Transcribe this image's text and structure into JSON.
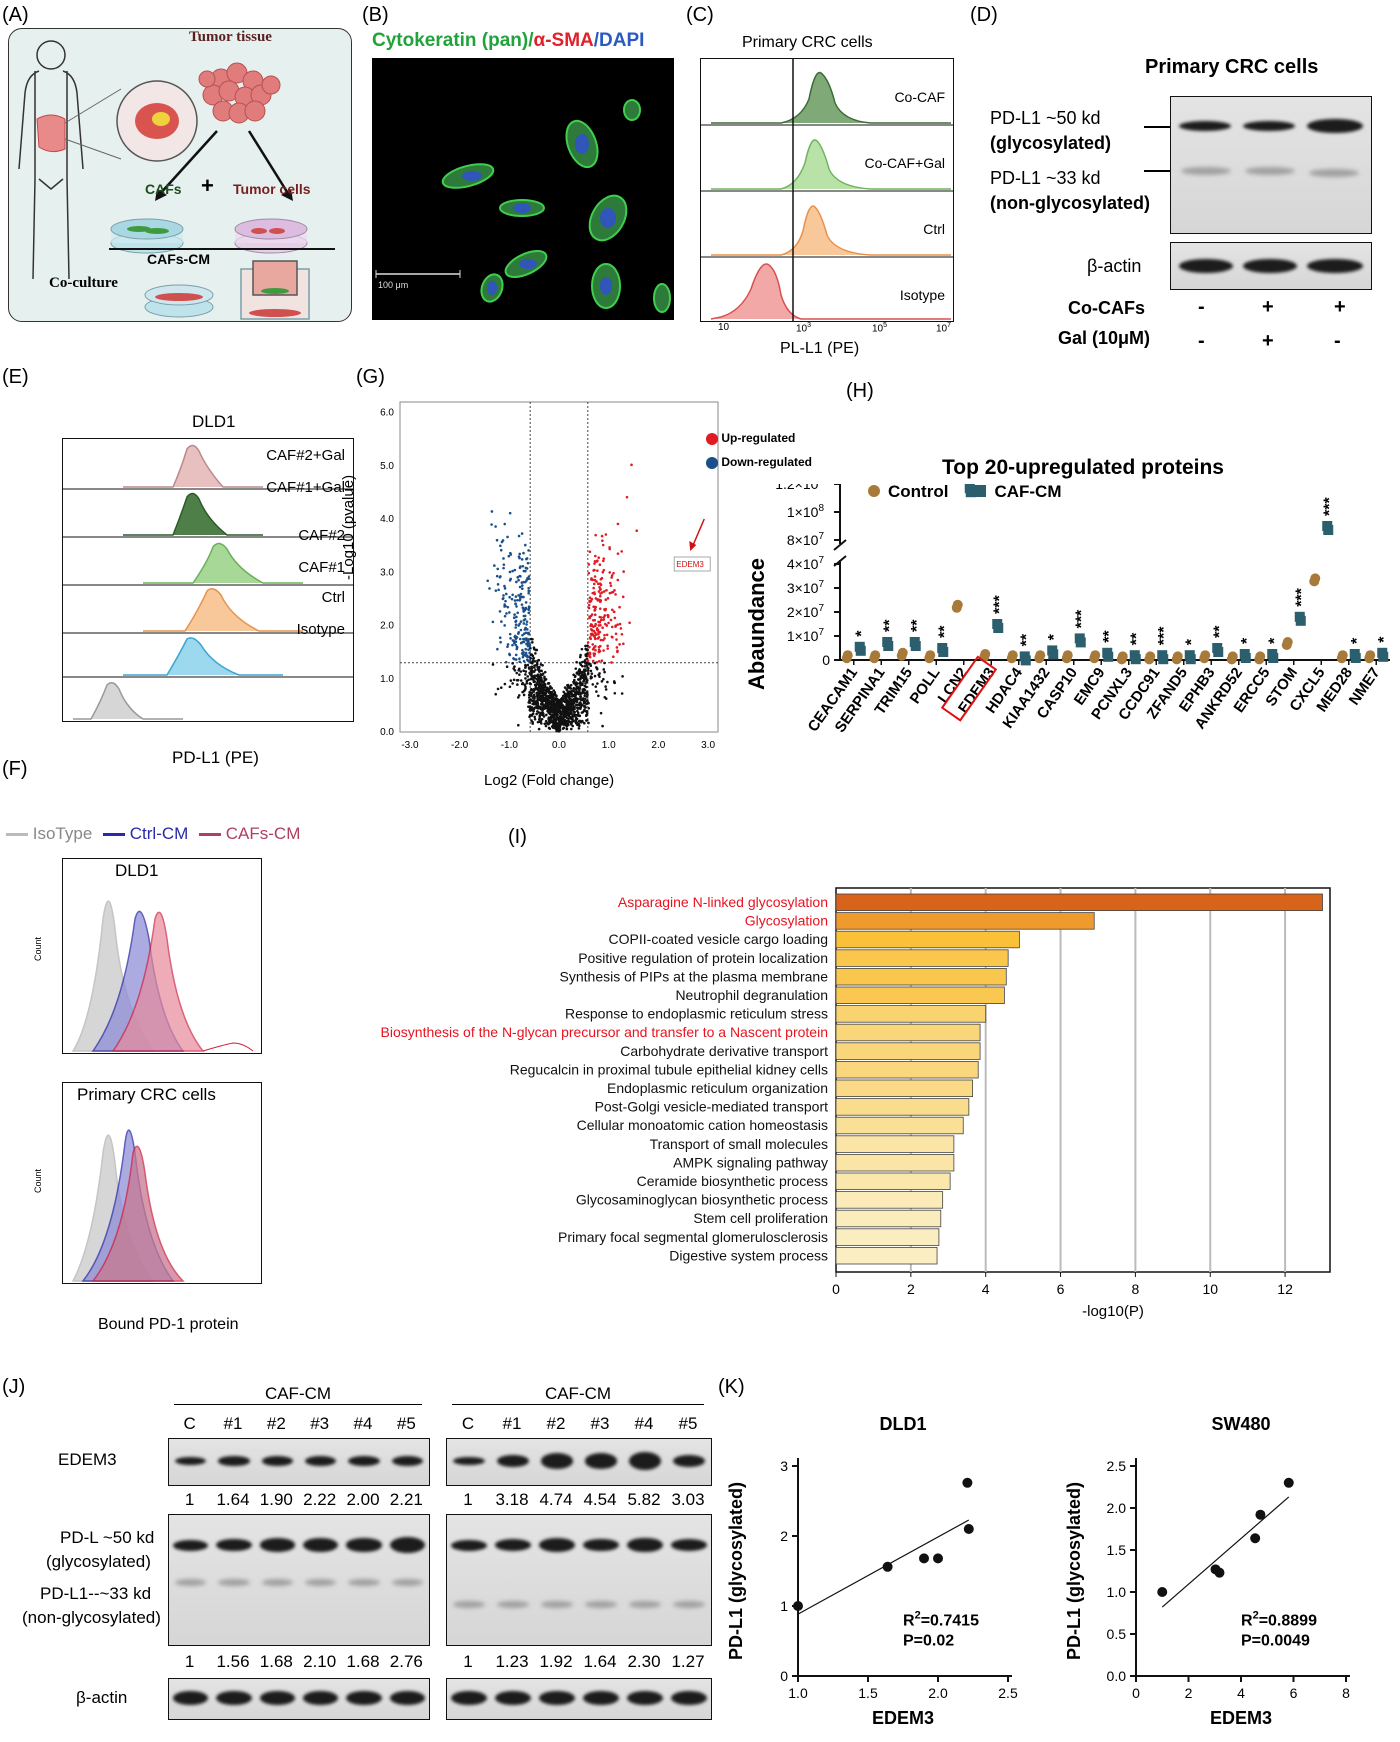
{
  "panels": {
    "A": "(A)",
    "B": "(B)",
    "C": "(C)",
    "D": "(D)",
    "E": "(E)",
    "F": "(F)",
    "G": "(G)",
    "H": "(H)",
    "I": "(I)",
    "J": "(J)",
    "K": "(K)"
  },
  "panelA": {
    "tumor_tissue": "Tumor tissue",
    "cafs": "CAFs",
    "plus": "+",
    "tumor_cells": "Tumor cells",
    "cafs_cm": "CAFs-CM",
    "coculture": "Co-culture"
  },
  "panelB": {
    "title_green": "Cytokeratin (pan)",
    "title_sep1": "/",
    "title_red": "α-SMA",
    "title_sep2": "/",
    "title_blue": "DAPI",
    "scale": "100 μm"
  },
  "panelC": {
    "title": "Primary CRC cells",
    "xlabel": "PL-L1 (PE)",
    "tracks": [
      "Co-CAF",
      "Co-CAF+Gal",
      "Ctrl",
      "Isotype"
    ],
    "ticks": [
      "10",
      "3",
      "10",
      "5",
      "10",
      "7"
    ]
  },
  "panelD": {
    "title": "Primary CRC cells",
    "pdl1_50": "PD-L1 ~50 kd",
    "glyco": "(glycosylated)",
    "pdl1_33": "PD-L1 ~33 kd",
    "nonglyco": "(non-glycosylated)",
    "actin": "β-actin",
    "cocafs": "Co-CAFs",
    "gal": "Gal (10μM)",
    "cocafs_signs": [
      "-",
      "+",
      "+"
    ],
    "gal_signs": [
      "-",
      "+",
      "-"
    ]
  },
  "panelE": {
    "title": "DLD1",
    "xlabel": "PD-L1 (PE)",
    "tracks": [
      "CAF#2+Gal",
      "CAF#1+Gal",
      "CAF#2",
      "CAF#1",
      "Ctrl",
      "Isotype"
    ]
  },
  "panelF": {
    "legend": [
      "IsoType",
      "Ctrl-CM",
      "CAFs-CM"
    ],
    "top_title": "DLD1",
    "bottom_title": "Primary CRC cells",
    "ylabel": "Count",
    "xlabel": "Bound PD-1 protein"
  },
  "panelG": {
    "legend_up": "Up-regulated",
    "legend_down": "Down-regulated",
    "ylabel": "-Log10 (pvalue)",
    "xlabel": "Log2 (Fold change)",
    "annot": "EDEM3"
  },
  "panelH": {
    "title": "Top 20-upregulated proteins",
    "ylabel": "Abaundance",
    "legend": [
      "Control",
      "CAF-CM"
    ]
  },
  "panelI": {
    "xlabel": "-log10(P)"
  },
  "panelJ": {
    "caf_cm": "CAF-CM",
    "lanes": [
      "C",
      "#1",
      "#2",
      "#3",
      "#4",
      "#5"
    ],
    "edem3": "EDEM3",
    "pdl_50": "PD-L ~50 kd",
    "glyco": "(glycosylated)",
    "pdl_33": "PD-L1--~33 kd",
    "nonglyco": "(non-glycosylated)",
    "actin": "β-actin",
    "left_edem3_vals": [
      "1",
      "1.64",
      "1.90",
      "2.22",
      "2.00",
      "2.21"
    ],
    "right_edem3_vals": [
      "1",
      "3.18",
      "4.74",
      "4.54",
      "5.82",
      "3.03"
    ],
    "left_pdl1_vals": [
      "1",
      "1.56",
      "1.68",
      "2.10",
      "1.68",
      "2.76"
    ],
    "right_pdl1_vals": [
      "1",
      "1.23",
      "1.92",
      "1.64",
      "2.30",
      "1.27"
    ]
  },
  "chart_data": [
    {
      "id": "H",
      "type": "scatter",
      "title": "Top 20-upregulated proteins",
      "ylabel": "Abaundance",
      "categories": [
        "CEACAM1",
        "SERPINA1",
        "TRIM15",
        "POLL",
        "LCN2",
        "EDEM3",
        "HDAC4",
        "KIAA1432",
        "CASP10",
        "EMC9",
        "PCNXL3",
        "CCDC91",
        "ZFAND5",
        "EPHB3",
        "ANKRD52",
        "ERCC5",
        "STOM",
        "CXCL5",
        "MED28",
        "NME7"
      ],
      "highlight": "EDEM3",
      "series": [
        {
          "name": "Control",
          "values": [
            2000000.0,
            2000000.0,
            3000000.0,
            2000000.0,
            23000000.0,
            2500000.0,
            2000000.0,
            2000000.0,
            2000000.0,
            2000000.0,
            1500000.0,
            1500000.0,
            1500000.0,
            2000000.0,
            1500000.0,
            1500000.0,
            7500000.0,
            34000000.0,
            2000000.0,
            2000000.0
          ]
        },
        {
          "name": "CAF-CM",
          "values": [
            5500000.0,
            7500000.0,
            7500000.0,
            5000000.0,
            117000000.0,
            15000000.0,
            1500000.0,
            4000000.0,
            9000000.0,
            3000000.0,
            2000000.0,
            2000000.0,
            2000000.0,
            5000000.0,
            2500000.0,
            2500000.0,
            18000000.0,
            90000000.0,
            2500000.0,
            3000000.0
          ]
        }
      ],
      "significance": [
        "*",
        "**",
        "**",
        "**",
        "***",
        "***",
        "**",
        "*",
        "***",
        "**",
        "**",
        "***",
        "*",
        "**",
        "*",
        "*",
        "***",
        "***",
        "*",
        "*"
      ],
      "yticks_lower": [
        "0",
        "1×10",
        "2×10",
        "3×10",
        "4×10"
      ],
      "yticks_upper": [
        "8×10",
        "1×10",
        "1.2×10",
        "1.4×10"
      ],
      "ytick_exponents_lower": [
        "",
        "7",
        "7",
        "7",
        "7"
      ],
      "ytick_exponents_upper": [
        "7",
        "8",
        "8",
        "8"
      ],
      "axis_break": true
    },
    {
      "id": "I",
      "type": "bar",
      "xlabel": "-log10(P)",
      "xlim": [
        0,
        13.2
      ],
      "xticks": [
        "0",
        "2",
        "4",
        "6",
        "8",
        "10",
        "12"
      ],
      "categories": [
        "Asparagine N-linked glycosylation",
        "Glycosylation",
        "COPII-coated vesicle cargo loading",
        "Positive regulation of protein localization",
        "Synthesis of PIPs at the plasma membrane",
        "Neutrophil degranulation",
        "Response to endoplasmic reticulum stress",
        "Biosynthesis of the N-glycan precursor and transfer to a Nascent protein",
        "Carbohydrate derivative transport",
        "Regucalcin in proximal tubule epithelial kidney cells",
        "Endoplasmic reticulum organization",
        "Post-Golgi vesicle-mediated transport",
        "Cellular monoatomic cation homeostasis",
        "Transport of small molecules",
        "AMPK signaling pathway",
        "Ceramide biosynthetic process",
        "Glycosaminoglycan biosynthetic process",
        "Stem cell proliferation",
        "Primary focal segmental glomerulosclerosis",
        "Digestive system process"
      ],
      "values": [
        13.0,
        6.9,
        4.9,
        4.6,
        4.55,
        4.5,
        4.0,
        3.85,
        3.85,
        3.8,
        3.65,
        3.55,
        3.4,
        3.15,
        3.15,
        3.05,
        2.85,
        2.8,
        2.75,
        2.7
      ],
      "highlighted": [
        "Asparagine N-linked glycosylation",
        "Glycosylation",
        "Biosynthesis of the N-glycan precursor and transfer to a Nascent protein"
      ],
      "colors": {
        "highlight_text": "#e8131f"
      }
    },
    {
      "id": "G",
      "type": "scatter",
      "xlabel": "Log2 (Fold change)",
      "ylabel": "-Log10 (pvalue)",
      "xlim": [
        -3.2,
        3.2
      ],
      "ylim": [
        0,
        6.2
      ],
      "xticks": [
        "-3.0",
        "-2.0",
        "-1.0",
        "0.0",
        "1.0",
        "2.0",
        "3.0"
      ],
      "yticks": [
        "0.0",
        "1.0",
        "2.0",
        "3.0",
        "4.0",
        "5.0",
        "6.0"
      ],
      "thresholds": {
        "x": [
          -0.58,
          0.58
        ],
        "y": 1.3
      },
      "annotation": {
        "label": "EDEM3",
        "x": 2.4,
        "y": 3.1
      },
      "colors": {
        "up": "#e01b24",
        "down": "#1a4f8a"
      }
    },
    {
      "id": "K1",
      "type": "scatter",
      "title": "DLD1",
      "xlabel": "EDEM3",
      "ylabel": "PD-L1 (glycosylated)",
      "x": [
        1,
        1.64,
        1.9,
        2.0,
        2.22,
        2.21
      ],
      "y": [
        1,
        1.56,
        1.68,
        1.68,
        2.1,
        2.76
      ],
      "xlim": [
        1.0,
        2.5
      ],
      "ylim": [
        0,
        3
      ],
      "xticks": [
        "1.0",
        "1.5",
        "2.0",
        "2.5"
      ],
      "yticks": [
        "0",
        "1",
        "2",
        "3"
      ],
      "stats": [
        "R",
        "2",
        "=0.7415",
        "P=0.02"
      ]
    },
    {
      "id": "K2",
      "type": "scatter",
      "title": "SW480",
      "xlabel": "EDEM3",
      "ylabel": "PD-L1 (glycosylated)",
      "x": [
        1,
        3.03,
        3.18,
        4.54,
        4.74,
        5.82
      ],
      "y": [
        1,
        1.27,
        1.23,
        1.64,
        1.92,
        2.3
      ],
      "xlim": [
        0,
        8
      ],
      "ylim": [
        0,
        2.5
      ],
      "xticks": [
        "0",
        "2",
        "4",
        "6",
        "8"
      ],
      "yticks": [
        "0.0",
        "0.5",
        "1.0",
        "1.5",
        "2.0",
        "2.5"
      ],
      "stats": [
        "R",
        "2",
        "=0.8899",
        "P=0.0049"
      ]
    }
  ]
}
